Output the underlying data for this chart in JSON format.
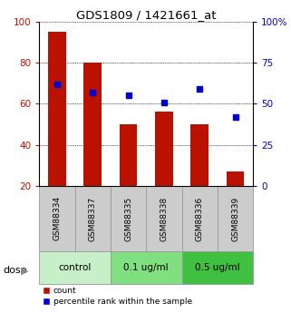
{
  "title": "GDS1809 / 1421661_at",
  "samples": [
    "GSM88334",
    "GSM88337",
    "GSM88335",
    "GSM88338",
    "GSM88336",
    "GSM88339"
  ],
  "red_values": [
    95,
    80,
    50,
    56,
    50,
    27
  ],
  "blue_values": [
    62,
    57,
    55,
    51,
    59,
    42
  ],
  "groups": [
    {
      "label": "control",
      "indices": [
        0,
        1
      ],
      "color": "#c8f0c8"
    },
    {
      "label": "0.1 ug/ml",
      "indices": [
        2,
        3
      ],
      "color": "#80e080"
    },
    {
      "label": "0.5 ug/ml",
      "indices": [
        4,
        5
      ],
      "color": "#40c040"
    }
  ],
  "dose_label": "dose",
  "ylim_left": [
    20,
    100
  ],
  "ylim_right": [
    0,
    100
  ],
  "yticks_left": [
    20,
    40,
    60,
    80,
    100
  ],
  "yticks_right": [
    0,
    25,
    50,
    75,
    100
  ],
  "ytick_labels_right": [
    "0",
    "25",
    "50",
    "75",
    "100%"
  ],
  "red_color": "#bb1100",
  "blue_color": "#0000cc",
  "bar_width": 0.5,
  "blue_marker_size": 5,
  "legend_red": "count",
  "legend_blue": "percentile rank within the sample",
  "sample_box_color": "#cccccc",
  "bg_color": "#ffffff"
}
